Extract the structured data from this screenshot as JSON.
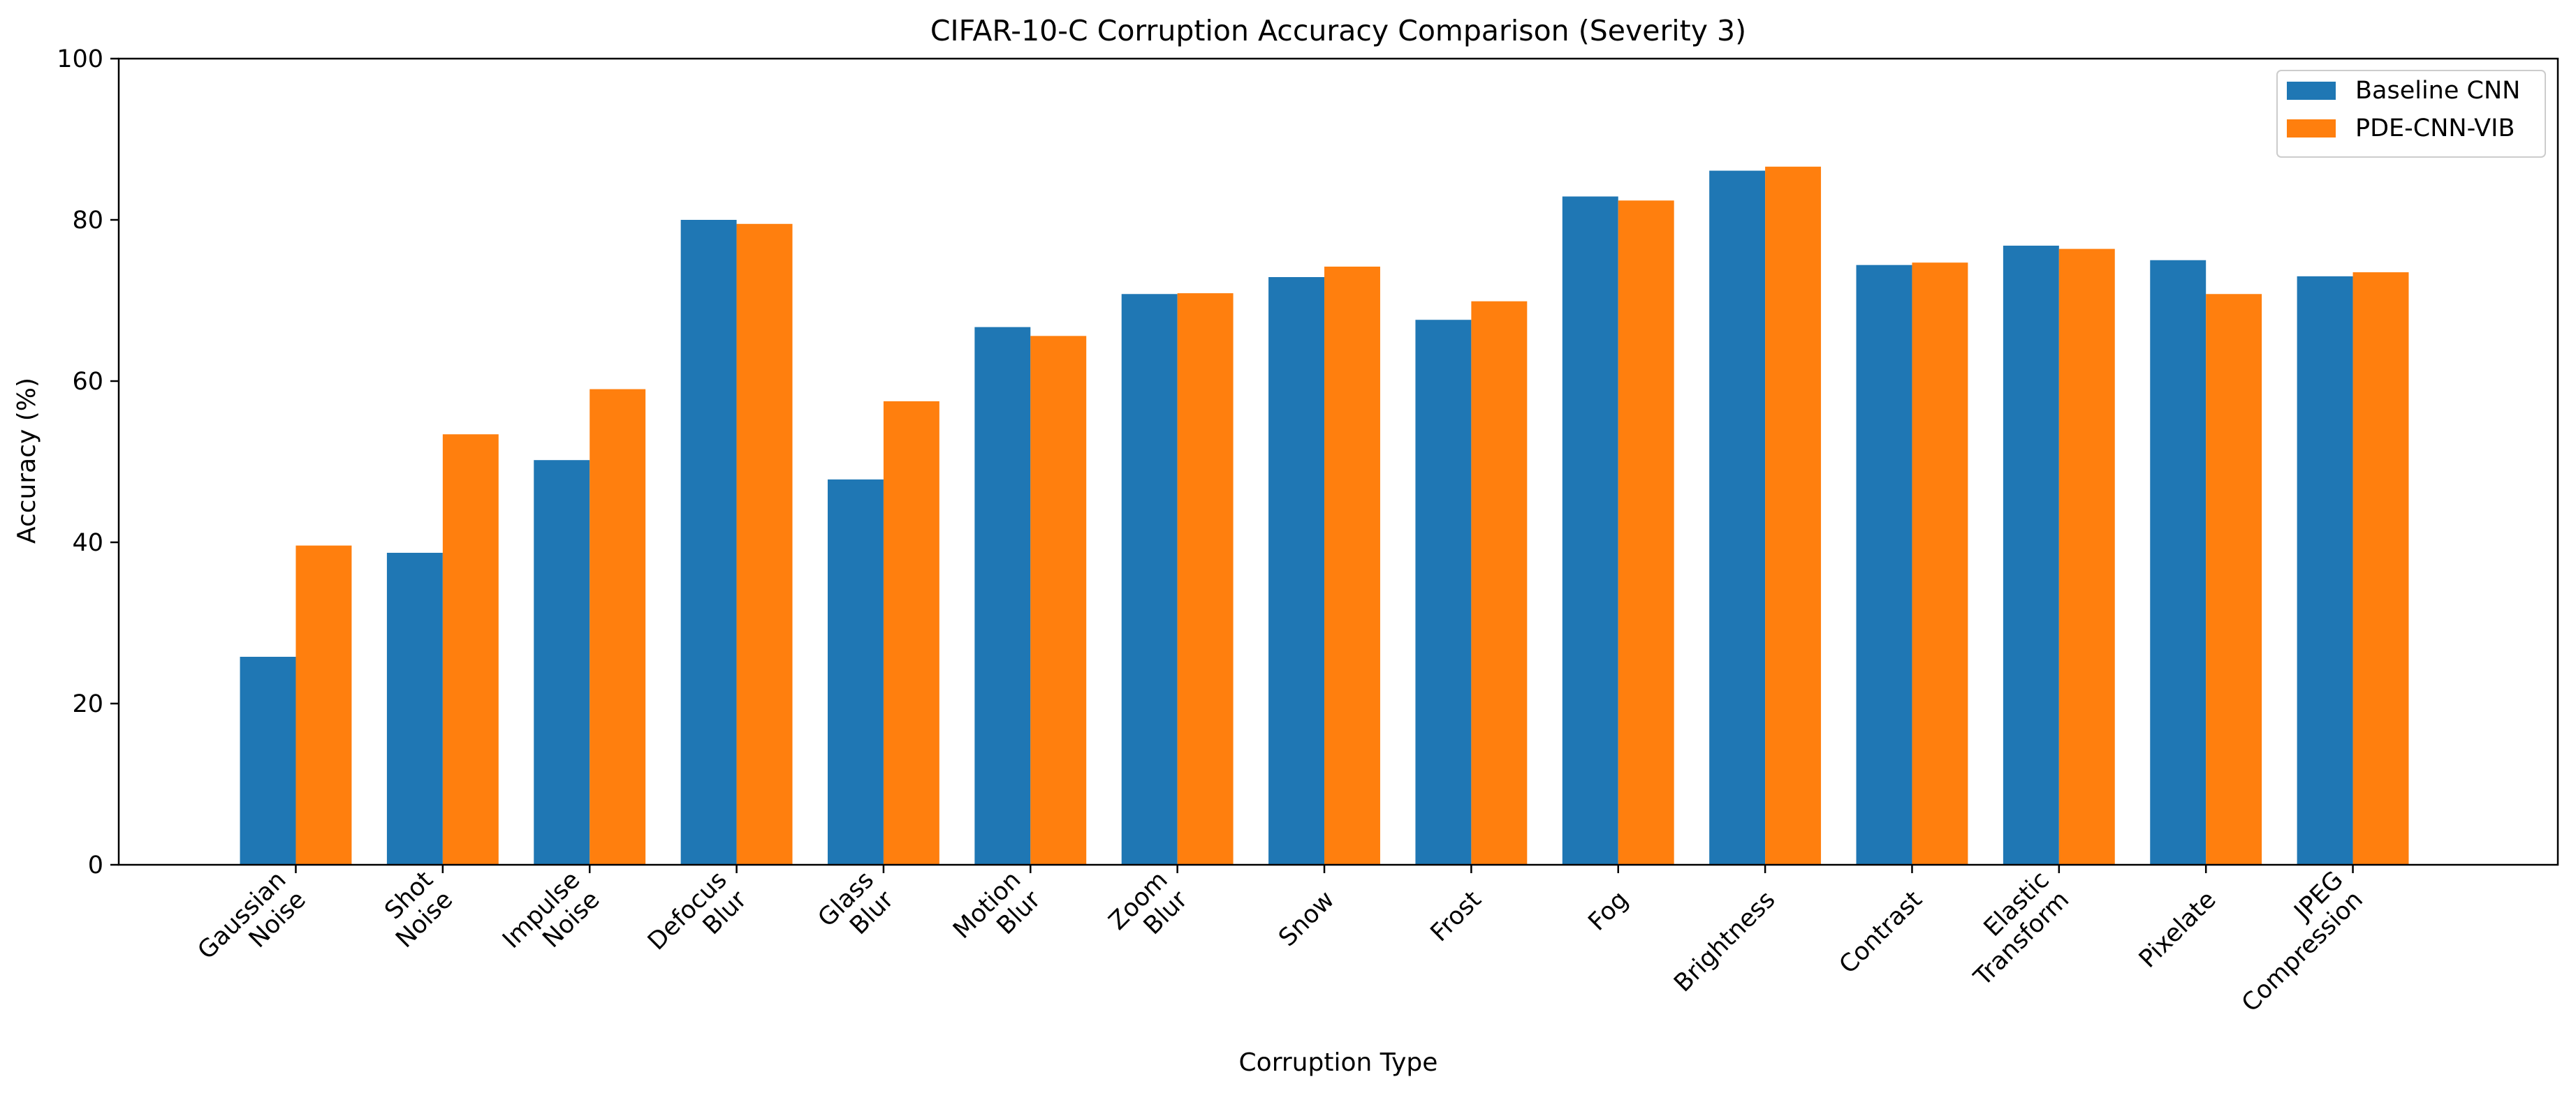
{
  "chart_data": {
    "type": "bar",
    "title": "CIFAR-10-C Corruption Accuracy Comparison (Severity 3)",
    "xlabel": "Corruption Type",
    "ylabel": "Accuracy (%)",
    "ylim": [
      0,
      100
    ],
    "yticks": [
      0,
      20,
      40,
      60,
      80,
      100
    ],
    "grid": false,
    "legend_position": "top-right",
    "categories": [
      [
        "Gaussian",
        "Noise"
      ],
      [
        "Shot",
        "Noise"
      ],
      [
        "Impulse",
        "Noise"
      ],
      [
        "Defocus",
        "Blur"
      ],
      [
        "Glass",
        "Blur"
      ],
      [
        "Motion",
        "Blur"
      ],
      [
        "Zoom",
        "Blur"
      ],
      [
        "Snow"
      ],
      [
        "Frost"
      ],
      [
        "Fog"
      ],
      [
        "Brightness"
      ],
      [
        "Contrast"
      ],
      [
        "Elastic",
        "Transform"
      ],
      [
        "Pixelate"
      ],
      [
        "JPEG",
        "Compression"
      ]
    ],
    "series": [
      {
        "name": "Baseline CNN",
        "color": "#1f77b4",
        "values": [
          25.8,
          38.7,
          50.2,
          80.0,
          47.8,
          66.7,
          70.8,
          72.9,
          67.6,
          82.9,
          86.1,
          74.4,
          76.8,
          75.0,
          73.0
        ]
      },
      {
        "name": "PDE-CNN-VIB",
        "color": "#ff7f0e",
        "values": [
          39.6,
          53.4,
          59.0,
          79.5,
          57.5,
          65.6,
          70.9,
          74.2,
          69.9,
          82.4,
          86.6,
          74.7,
          76.4,
          70.8,
          73.5
        ]
      }
    ]
  }
}
